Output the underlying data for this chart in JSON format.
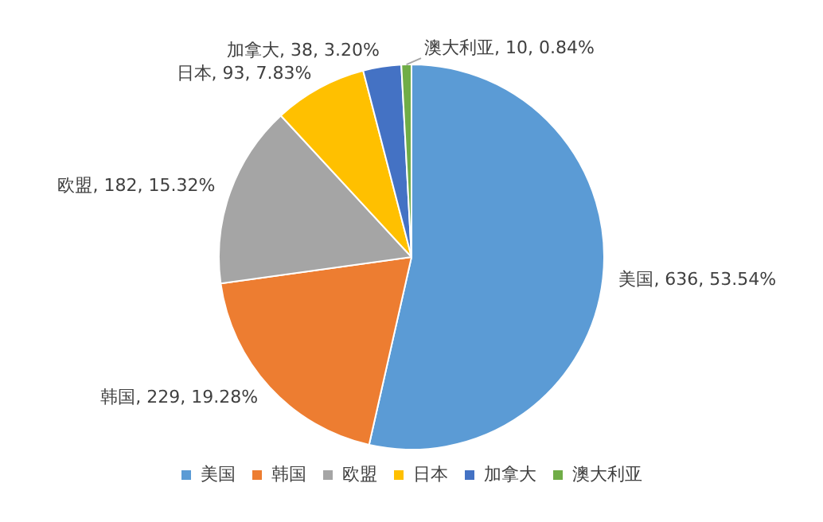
{
  "chart_data": {
    "type": "pie",
    "categories": [
      "美国",
      "韩国",
      "欧盟",
      "日本",
      "加拿大",
      "澳大利亚"
    ],
    "values": [
      636,
      229,
      182,
      93,
      38,
      10
    ],
    "colors": [
      "#5b9bd5",
      "#ed7d31",
      "#a5a5a5",
      "#ffc000",
      "#4472c4",
      "#70ad47"
    ],
    "value_labels": [
      "美国, 636, 53.54%",
      "韩国, 229, 19.28%",
      "欧盟, 182, 15.32%",
      "日本, 93, 7.83%",
      "加拿大, 38, 3.20%",
      "澳大利亚, 10, 0.84%"
    ],
    "legend": "bottom"
  }
}
